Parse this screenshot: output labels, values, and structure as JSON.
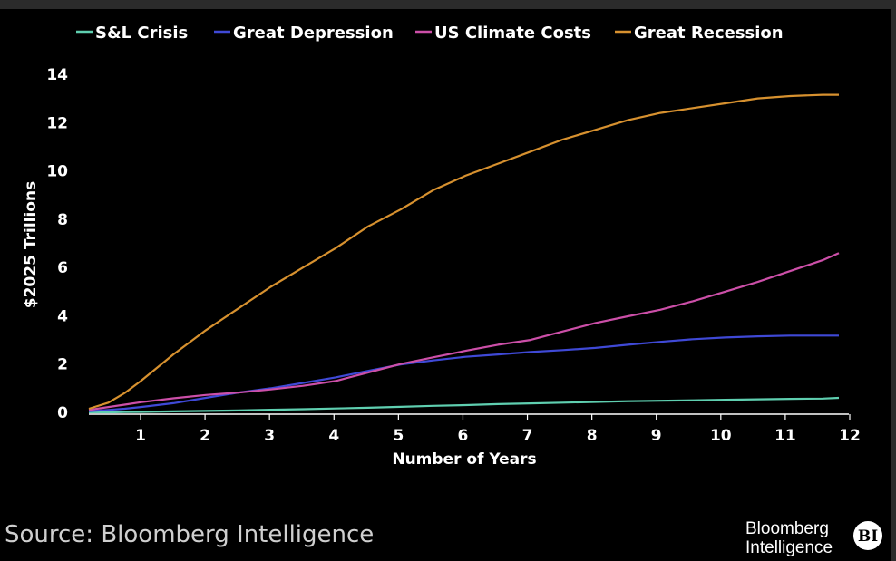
{
  "chart_data": {
    "type": "line",
    "xlabel": "Number of Years",
    "ylabel": "$2025 Trillions",
    "xlim": [
      0.2,
      12
    ],
    "ylim": [
      0,
      14
    ],
    "x_ticks": [
      1,
      2,
      3,
      4,
      5,
      6,
      7,
      8,
      9,
      10,
      11,
      12
    ],
    "y_ticks": [
      0,
      2,
      4,
      6,
      8,
      10,
      12,
      14
    ],
    "grid": false,
    "legend_position": "top",
    "x": [
      0.2,
      0.5,
      0.75,
      1,
      1.5,
      2,
      2.5,
      3,
      3.5,
      4,
      4.5,
      5,
      5.5,
      6,
      6.5,
      7,
      7.5,
      8,
      8.5,
      9,
      9.5,
      10,
      10.5,
      11,
      11.5,
      11.75
    ],
    "series": [
      {
        "name": "S&L Crisis",
        "color": "#5fcfb0",
        "values": [
          0.0,
          0.0,
          0.01,
          0.02,
          0.04,
          0.06,
          0.08,
          0.11,
          0.13,
          0.16,
          0.19,
          0.23,
          0.27,
          0.3,
          0.34,
          0.37,
          0.4,
          0.43,
          0.46,
          0.48,
          0.5,
          0.52,
          0.54,
          0.56,
          0.57,
          0.6
        ]
      },
      {
        "name": "Great Depression",
        "color": "#3f49d6",
        "values": [
          0.05,
          0.1,
          0.15,
          0.22,
          0.38,
          0.6,
          0.82,
          1.0,
          1.22,
          1.45,
          1.72,
          1.98,
          2.15,
          2.3,
          2.4,
          2.5,
          2.58,
          2.67,
          2.8,
          2.92,
          3.03,
          3.1,
          3.15,
          3.18,
          3.18,
          3.18
        ]
      },
      {
        "name": "US Climate Costs",
        "color": "#cc4fa8",
        "values": [
          0.1,
          0.22,
          0.32,
          0.42,
          0.58,
          0.72,
          0.82,
          0.95,
          1.1,
          1.3,
          1.65,
          2.0,
          2.28,
          2.55,
          2.8,
          3.0,
          3.35,
          3.7,
          3.98,
          4.25,
          4.6,
          5.0,
          5.4,
          5.85,
          6.3,
          6.6
        ]
      },
      {
        "name": "Great Recession",
        "color": "#d7912f",
        "values": [
          0.15,
          0.4,
          0.8,
          1.3,
          2.4,
          3.4,
          4.3,
          5.2,
          6.0,
          6.8,
          7.7,
          8.4,
          9.2,
          9.8,
          10.3,
          10.8,
          11.3,
          11.7,
          12.1,
          12.4,
          12.6,
          12.8,
          13.0,
          13.1,
          13.15,
          13.15
        ]
      }
    ]
  },
  "footer": {
    "source": "Source: Bloomberg Intelligence",
    "brand_line1": "Bloomberg",
    "brand_line2": "Intelligence",
    "badge": "BI"
  }
}
